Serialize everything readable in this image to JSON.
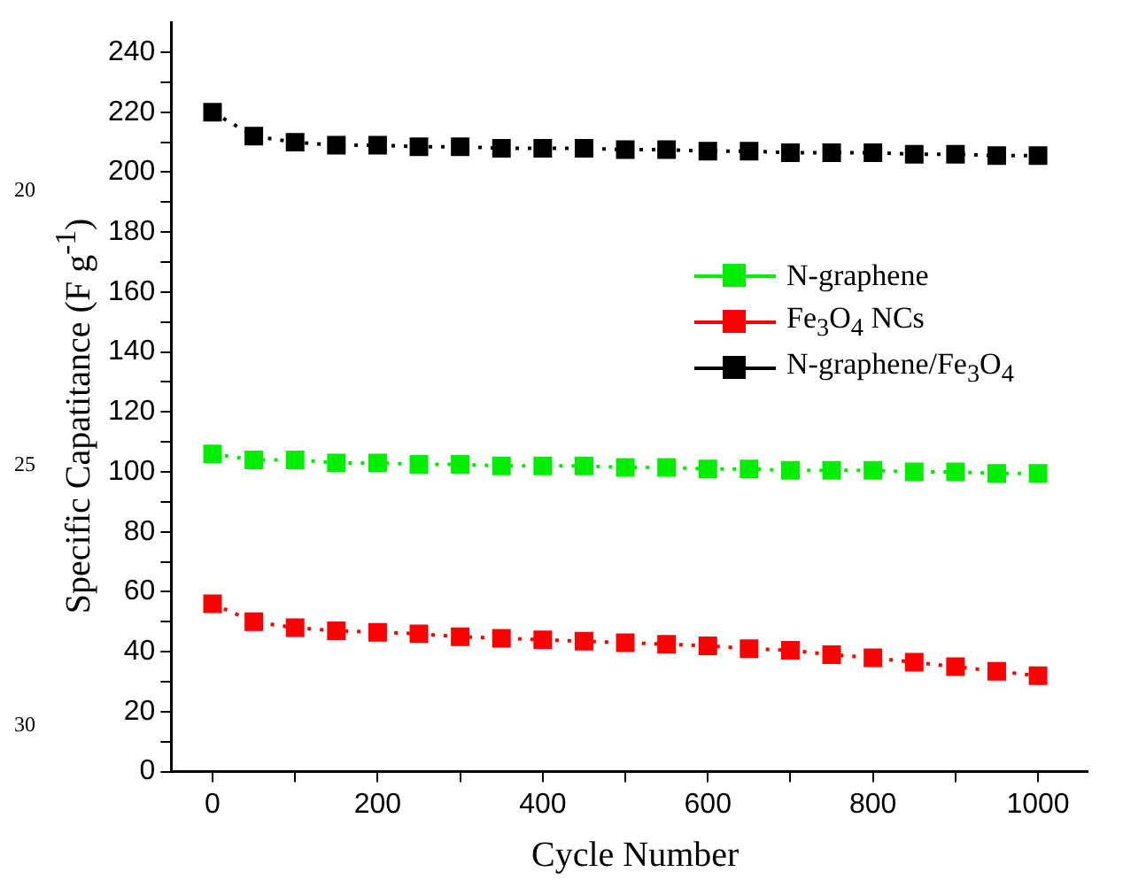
{
  "chart_data": {
    "type": "line",
    "xlabel": "Cycle Number",
    "ylabel": "Specific Capatitance (F g$^{-1}$)",
    "x": [
      0,
      50,
      100,
      150,
      200,
      250,
      300,
      350,
      400,
      450,
      500,
      550,
      600,
      650,
      700,
      750,
      800,
      850,
      900,
      950,
      1000
    ],
    "series": [
      {
        "name": "N-graphene",
        "color": "#00ee00",
        "values": [
          106,
          104,
          104,
          103,
          103,
          102.5,
          102.5,
          102,
          102,
          102,
          101.5,
          101.5,
          101,
          101,
          100.5,
          100.5,
          100.5,
          100,
          100,
          99.5,
          99.5
        ]
      },
      {
        "name": "Fe$_{3}$O$_{4}$ NCs",
        "color": "#ff0000",
        "values": [
          56,
          50,
          48,
          47,
          46.5,
          46,
          45,
          44.5,
          44,
          43.5,
          43,
          42.5,
          42,
          41,
          40.5,
          39,
          38,
          36.5,
          35,
          33.5,
          32
        ]
      },
      {
        "name": "N-graphene/Fe$_{3}$O$_{4}$",
        "color": "#000000",
        "values": [
          220,
          212,
          210,
          209,
          209,
          208.5,
          208.5,
          208,
          208,
          208,
          207.5,
          207.5,
          207,
          207,
          206.5,
          206.5,
          206.5,
          206,
          206,
          205.5,
          205.5
        ]
      }
    ],
    "xlim": [
      -50,
      1060
    ],
    "xticks": [
      0,
      {
        "value": 100,
        "label": null
      },
      200,
      {
        "value": 300,
        "label": null
      },
      400,
      {
        "value": 500,
        "label": null
      },
      600,
      {
        "value": 700,
        "label": null
      },
      800,
      {
        "value": 900,
        "label": null
      },
      1000
    ],
    "ylim": [
      0,
      250
    ],
    "yticks": [
      0,
      {
        "value": 10,
        "label": null
      },
      20,
      {
        "value": 30,
        "label": null
      },
      40,
      {
        "value": 50,
        "label": null
      },
      60,
      {
        "value": 70,
        "label": null
      },
      80,
      {
        "value": 90,
        "label": null
      },
      100,
      {
        "value": 110,
        "label": null
      },
      120,
      {
        "value": 130,
        "label": null
      },
      140,
      {
        "value": 150,
        "label": null
      },
      160,
      {
        "value": 170,
        "label": null
      },
      180,
      {
        "value": 190,
        "label": null
      },
      200,
      {
        "value": 210,
        "label": null
      },
      220,
      {
        "value": 230,
        "label": null
      },
      240
    ],
    "legend": "right",
    "marker": "square",
    "line_style": "dotted",
    "annotations": [
      "20",
      "25",
      "30"
    ]
  }
}
